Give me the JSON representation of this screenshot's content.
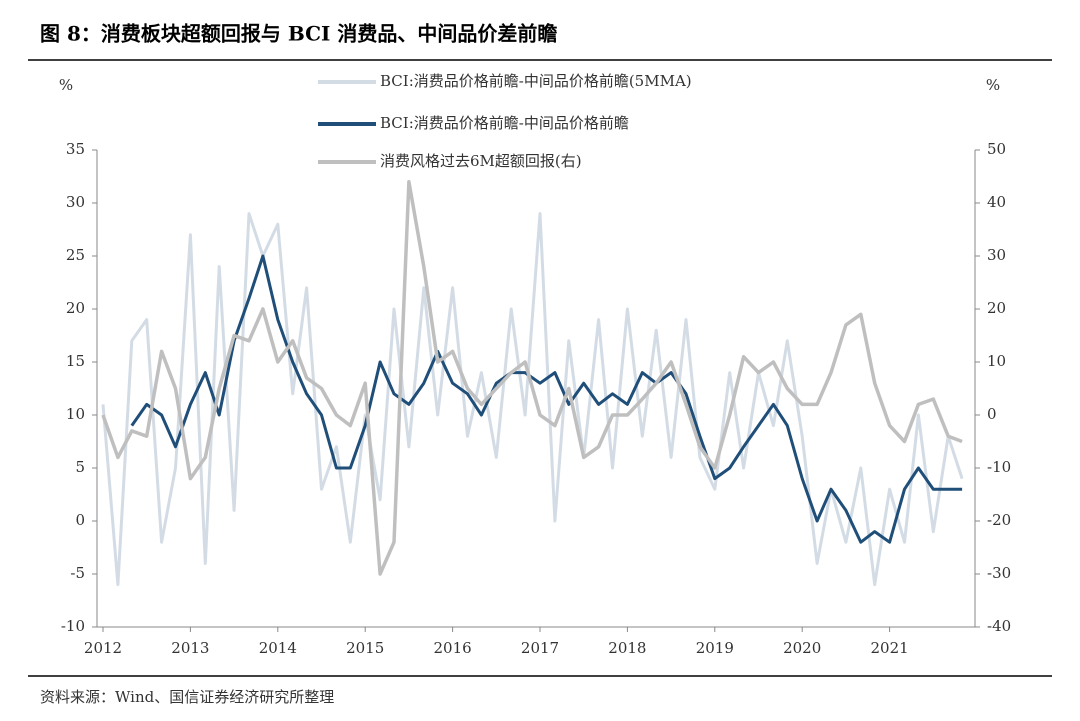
{
  "chart_data": {
    "type": "line",
    "title": "图 8：消费板块超额回报与 BCI 消费品、中间品价差前瞻",
    "source": "资料来源：Wind、国信证券经济研究所整理",
    "ylabel": "%",
    "y2label": "%",
    "x": [
      2012,
      2012.17,
      2012.33,
      2012.5,
      2012.67,
      2012.83,
      2013,
      2013.17,
      2013.33,
      2013.5,
      2013.67,
      2013.83,
      2014,
      2014.17,
      2014.33,
      2014.5,
      2014.67,
      2014.83,
      2015,
      2015.17,
      2015.33,
      2015.5,
      2015.67,
      2015.83,
      2016,
      2016.17,
      2016.33,
      2016.5,
      2016.67,
      2016.83,
      2017,
      2017.17,
      2017.33,
      2017.5,
      2017.67,
      2017.83,
      2018,
      2018.17,
      2018.33,
      2018.5,
      2018.67,
      2018.83,
      2019,
      2019.17,
      2019.33,
      2019.5,
      2019.67,
      2019.83,
      2020,
      2020.17,
      2020.33,
      2020.5,
      2020.67,
      2020.83,
      2021,
      2021.17,
      2021.33,
      2021.5,
      2021.67,
      2021.83
    ],
    "xlim": [
      2012,
      2022
    ],
    "xticks": [
      2012,
      2013,
      2014,
      2015,
      2016,
      2017,
      2018,
      2019,
      2020,
      2021
    ],
    "ylim": [
      -10,
      35
    ],
    "yticks": [
      -10,
      -5,
      0,
      5,
      10,
      15,
      20,
      25,
      30,
      35
    ],
    "y2lim": [
      -40,
      50
    ],
    "y2ticks": [
      -40,
      -30,
      -20,
      -10,
      0,
      10,
      20,
      30,
      40,
      50
    ],
    "series": [
      {
        "name": "BCI:消费品价格前瞻-中间品价格前瞻(5MMA)",
        "color": "#d3dce5",
        "values": [
          11,
          -6,
          17,
          19,
          -2,
          5,
          27,
          -4,
          24,
          1,
          29,
          25,
          28,
          12,
          22,
          3,
          7,
          -2,
          10,
          2,
          20,
          7,
          22,
          10,
          22,
          8,
          14,
          6,
          20,
          10,
          29,
          0,
          17,
          6,
          19,
          5,
          20,
          8,
          18,
          6,
          19,
          6,
          3,
          14,
          5,
          14,
          9,
          17,
          8,
          -4,
          3,
          -2,
          5,
          -6,
          3,
          -2,
          10,
          -1,
          8,
          4
        ]
      },
      {
        "name": "BCI:消费品价格前瞻-中间品价格前瞻",
        "color": "#1f4e79",
        "values": [
          null,
          null,
          9,
          11,
          10,
          7,
          11,
          14,
          10,
          17,
          21,
          25,
          19,
          15,
          12,
          10,
          5,
          5,
          9,
          15,
          12,
          11,
          13,
          16,
          13,
          12,
          10,
          13,
          14,
          14,
          13,
          14,
          11,
          13,
          11,
          12,
          11,
          14,
          13,
          14,
          12,
          8,
          4,
          5,
          7,
          9,
          11,
          9,
          4,
          0,
          3,
          1,
          -2,
          -1,
          -2,
          3,
          5,
          3,
          3,
          3
        ]
      },
      {
        "name": "消费风格过去6M超额回报(右)",
        "color": "#bfbfbf",
        "axis": "y2",
        "values": [
          0,
          -8,
          -3,
          -4,
          12,
          5,
          -12,
          -8,
          5,
          15,
          14,
          20,
          10,
          14,
          7,
          5,
          0,
          -2,
          6,
          -30,
          -24,
          44,
          28,
          10,
          12,
          5,
          2,
          5,
          8,
          10,
          0,
          -2,
          5,
          -8,
          -6,
          0,
          0,
          3,
          6,
          10,
          2,
          -6,
          -10,
          0,
          11,
          8,
          10,
          5,
          2,
          2,
          8,
          17,
          19,
          6,
          -2,
          -5,
          2,
          3,
          -4,
          -5
        ]
      }
    ]
  }
}
